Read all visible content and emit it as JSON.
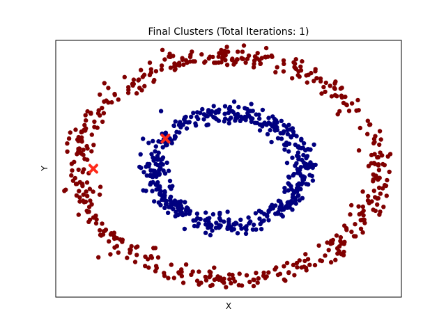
{
  "chart_data": {
    "type": "scatter",
    "title": "Final Clusters (Total Iterations: 1)",
    "xlabel": "X",
    "ylabel": "Y",
    "xlim": [
      -1.15,
      1.15
    ],
    "ylim": [
      -1.15,
      1.15
    ],
    "ticks_visible": false,
    "grid": false,
    "legend": "none",
    "series": [
      {
        "color": "#800000",
        "shape": "ring",
        "radius": 1.0,
        "noise": 0.045,
        "count": 500
      },
      {
        "color": "#00007f",
        "shape": "ring",
        "radius": 0.5,
        "noise": 0.045,
        "count": 500
      }
    ],
    "centroids": {
      "color": "#ff2a1a",
      "marker": "x",
      "points": [
        {
          "x": -0.9,
          "y": 0.0
        },
        {
          "x": -0.42,
          "y": 0.27
        }
      ]
    }
  }
}
